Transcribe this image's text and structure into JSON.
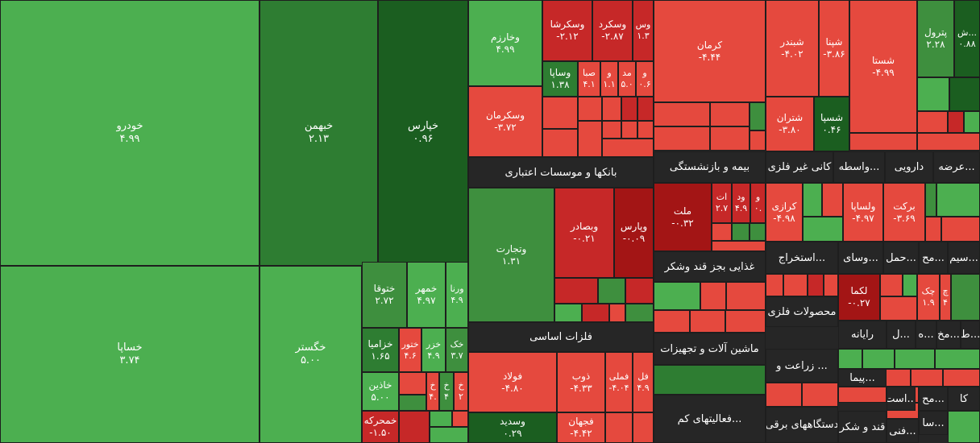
{
  "chart_data": {
    "type": "treemap",
    "colors": {
      "g1": "#4caf50",
      "g2": "#3e8f3e",
      "g3": "#2e7d32",
      "g4": "#1b5e20",
      "r1": "#e5493e",
      "r2": "#c62828",
      "r3": "#a31515"
    },
    "sectors": [
      "بانکها و موسسات اعتباری",
      "بیمه و بازنشستگی",
      "کانی غیر فلزی",
      "واسطه...",
      "دارویی",
      "عرضه...",
      "غذایی بجز قند وشکر",
      "استخراج...",
      "وسای...",
      "حمل...",
      "مح...",
      "سیم...",
      "فلزات اساسی",
      "محصولات فلزی",
      "رایانه",
      "ل...",
      "ه...",
      "مخ...",
      "ط...",
      "ماشین آلات و تجهیزات",
      "زراعت و ...",
      "پیما...",
      "فعالیتهای کم...",
      "است...",
      "مح...",
      "کا",
      "دستگاههای برقی",
      "قند و شکر",
      "سا...",
      "فنی..."
    ],
    "tiles": [
      {
        "name": "خودرو",
        "value": "۴.۹۹",
        "color": "g1"
      },
      {
        "name": "خساپا",
        "value": "۳.۷۴",
        "color": "g1"
      },
      {
        "name": "خبهمن",
        "value": "۲.۱۳",
        "color": "g3"
      },
      {
        "name": "خپارس",
        "value": "۰.۹۶",
        "color": "g4"
      },
      {
        "name": "خگستر",
        "value": "۵.۰۰",
        "color": "g1"
      },
      {
        "name": "ختوقا",
        "value": "۲.۷۲",
        "color": "g2"
      },
      {
        "name": "خمهر",
        "value": "۴.۹۷",
        "color": "g1"
      },
      {
        "name": "ورنا",
        "value": "۴.۹",
        "color": "g1"
      },
      {
        "name": "خزامیا",
        "value": "۱.۶۵",
        "color": "g3"
      },
      {
        "name": "ختور",
        "value": "۴.۶",
        "color": "r1"
      },
      {
        "name": "خزر",
        "value": "۴.۹",
        "color": "g1"
      },
      {
        "name": "خک",
        "value": "۳.۷",
        "color": "g2"
      },
      {
        "name": "خاذین",
        "value": "۵.۰۰",
        "color": "g1"
      },
      {
        "name": "خ",
        "value": "۴.",
        "color": "r1"
      },
      {
        "name": "خ",
        "value": "۴",
        "color": "g2"
      },
      {
        "name": "خ",
        "value": "۲",
        "color": "r1"
      },
      {
        "name": "خمحرکه",
        "value": "-۱.۵۰",
        "color": "r2"
      },
      {
        "name": "وخارزم",
        "value": "۴.۹۹",
        "color": "g1"
      },
      {
        "name": "وسکرشا",
        "value": "-۲.۱۲",
        "color": "r2"
      },
      {
        "name": "وسکرد",
        "value": "-۲.۸۷",
        "color": "r2"
      },
      {
        "name": "وس",
        "value": "۱.۳",
        "color": "r2"
      },
      {
        "name": "وساپا",
        "value": "۱.۳۸",
        "color": "g3"
      },
      {
        "name": "صبا",
        "value": "۴.۱",
        "color": "r1"
      },
      {
        "name": "و",
        "value": "۱.۱",
        "color": "r1"
      },
      {
        "name": "مد",
        "value": "۵.۰",
        "color": "r1"
      },
      {
        "name": "و",
        "value": "۰.۶",
        "color": "r1"
      },
      {
        "name": "وسکرمان",
        "value": "-۳.۷۲",
        "color": "r1"
      },
      {
        "name": "کرمان",
        "value": "-۴.۴۴",
        "color": "r1"
      },
      {
        "name": "شبندر",
        "value": "-۴.۰۲",
        "color": "r1"
      },
      {
        "name": "شپنا",
        "value": "-۳.۸۶",
        "color": "r1"
      },
      {
        "name": "شستا",
        "value": "-۴.۹۹",
        "color": "r1"
      },
      {
        "name": "شتران",
        "value": "-۳.۸۰",
        "color": "r1"
      },
      {
        "name": "شسپا",
        "value": "۰.۴۶",
        "color": "g4"
      },
      {
        "name": "پترول",
        "value": "۲.۲۸",
        "color": "g2"
      },
      {
        "name": "ش...",
        "value": "۰.۸۸",
        "color": "g4"
      },
      {
        "name": "وتجارت",
        "value": "۱.۳۱",
        "color": "g2"
      },
      {
        "name": "وبصادر",
        "value": "-۰.۲۱",
        "color": "r2"
      },
      {
        "name": "وپارس",
        "value": "-۰.۰۹",
        "color": "r3"
      },
      {
        "name": "ملت",
        "value": "-۰.۳۲",
        "color": "r3"
      },
      {
        "name": "ات",
        "value": "۲.۷",
        "color": "r2"
      },
      {
        "name": "ود",
        "value": "۴.۹",
        "color": "r2"
      },
      {
        "name": "و",
        "value": "۰.",
        "color": "r2"
      },
      {
        "name": "کرازی",
        "value": "-۴.۹۸",
        "color": "r1"
      },
      {
        "name": "ولساپا",
        "value": "-۴.۹۷",
        "color": "r1"
      },
      {
        "name": "برکت",
        "value": "-۳.۶۹",
        "color": "r1"
      },
      {
        "name": "لکما",
        "value": "-۰.۲۷",
        "color": "r3"
      },
      {
        "name": "چک",
        "value": "۱.۹",
        "color": "r1"
      },
      {
        "name": "چ",
        "value": "۴",
        "color": "r1"
      },
      {
        "name": "فولاد",
        "value": "-۴.۸۰",
        "color": "r1"
      },
      {
        "name": "ذوب",
        "value": "-۴.۳۳",
        "color": "r1"
      },
      {
        "name": "فملی",
        "value": "-۴.۰۴",
        "color": "r1"
      },
      {
        "name": "فل",
        "value": "۴.۹",
        "color": "r1"
      },
      {
        "name": "وسدید",
        "value": "۰.۲۹",
        "color": "g4"
      },
      {
        "name": "فجهان",
        "value": "-۴.۴۲",
        "color": "r1"
      }
    ]
  }
}
